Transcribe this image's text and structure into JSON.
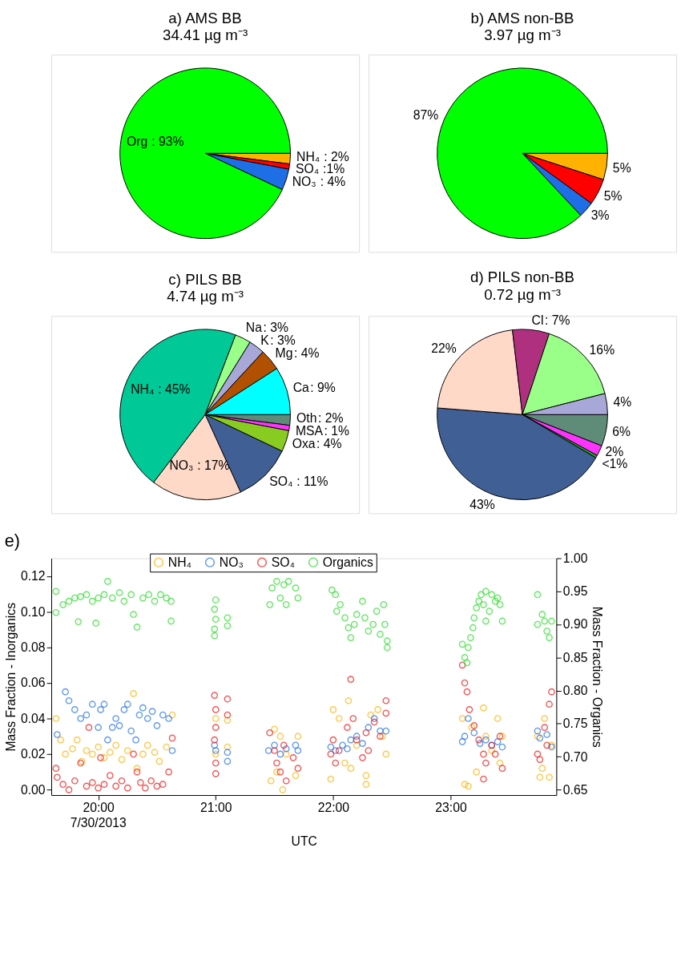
{
  "chart_data": [
    {
      "type": "pie",
      "title": "a) AMS BB",
      "subtitle": "34.41 µg m⁻³",
      "categories": [
        "NH₄",
        "SO₄",
        "NO₃",
        "Org"
      ],
      "values": [
        2,
        1,
        4,
        93
      ],
      "colors": [
        "#ffb300",
        "#ff0000",
        "#1e6fe6",
        "#00ff00"
      ],
      "value_labels": [
        ": 2%",
        ":1%",
        ": 4%",
        ": 93%"
      ]
    },
    {
      "type": "pie",
      "title": "b) AMS non-BB",
      "subtitle": "3.97 µg m⁻³",
      "categories": [
        null,
        null,
        null,
        null
      ],
      "values": [
        5,
        5,
        3,
        87
      ],
      "colors": [
        "#ffb300",
        "#ff0000",
        "#1e6fe6",
        "#00ff00"
      ],
      "value_labels": [
        "5%",
        "5%",
        "3%",
        "87%"
      ]
    },
    {
      "type": "pie",
      "title": "c) PILS BB",
      "subtitle": "4.74 µg m⁻³",
      "categories": [
        "Oth",
        "MSA",
        "Oxa",
        "SO₄",
        "NO₃",
        "NH₄",
        "Na",
        "K",
        "Mg",
        "Ca"
      ],
      "values": [
        2,
        1,
        4,
        11,
        17,
        45,
        3,
        3,
        4,
        9
      ],
      "colors": [
        "#5e8c78",
        "#ff33ff",
        "#88cc22",
        "#3f5f95",
        "#ffd9c8",
        "#00c896",
        "#99ff88",
        "#a8a8d8",
        "#b05000",
        "#00ffff"
      ],
      "value_labels": [
        ": 2%",
        ": 1%",
        ": 4%",
        ": 11%",
        ": 17%",
        ": 45%",
        ": 3%",
        ": 3%",
        ": 4%",
        ": 9%"
      ]
    },
    {
      "type": "pie",
      "title": "d) PILS non-BB",
      "subtitle": "0.72 µg m⁻³",
      "categories": [
        null,
        null,
        null,
        null,
        null,
        "Cl",
        null,
        null
      ],
      "values": [
        6,
        2,
        0.5,
        43,
        22,
        7,
        16,
        4
      ],
      "colors": [
        "#5e8c78",
        "#ff33ff",
        "#22aa22",
        "#3f5f95",
        "#ffd9c8",
        "#b03080",
        "#99ff88",
        "#a8a8d8"
      ],
      "value_labels": [
        "6%",
        "2%",
        "<1%",
        "43%",
        "22%",
        ": 7%",
        "16%",
        "4%"
      ]
    },
    {
      "type": "scatter",
      "title": "e)",
      "xlabel": "UTC",
      "ylabel": "Mass Fraction - Inorganics",
      "y2label": "Mass Fraction - Organics",
      "xlim": [
        19.6,
        23.9
      ],
      "xticks": [
        {
          "value": 20,
          "label": "20:00"
        },
        {
          "value": 21,
          "label": "21:00"
        },
        {
          "value": 22,
          "label": "22:00"
        },
        {
          "value": 23,
          "label": "23:00"
        }
      ],
      "ylim": [
        -0.003,
        0.13
      ],
      "yticks": [
        {
          "value": 0,
          "label": "0.00"
        },
        0.02,
        0.04,
        0.06,
        0.08,
        {
          "value": 0.1,
          "label": "0.10"
        },
        0.12
      ],
      "y2lim": [
        0.642,
        1.0
      ],
      "y2ticks": [
        0.65,
        {
          "value": 0.7,
          "label": "0.70"
        },
        0.75,
        {
          "value": 0.8,
          "label": "0.80"
        },
        0.85,
        {
          "value": 0.9,
          "label": "0.90"
        },
        0.95,
        {
          "value": 1,
          "label": "1.00"
        }
      ],
      "marker": "circle",
      "legend": "top",
      "grid": false,
      "annotations": [
        "7/30/2013"
      ],
      "series": [
        {
          "name": "NH₄",
          "color": "#ffb000",
          "x": [
            19.64,
            19.68,
            19.72,
            19.78,
            19.82,
            19.86,
            19.9,
            19.95,
            20.0,
            20.05,
            20.1,
            20.15,
            20.2,
            20.25,
            20.3,
            20.33,
            20.38,
            20.42,
            20.48,
            20.52,
            20.58,
            20.63,
            21.0,
            21.0,
            21.1,
            21.1,
            21.47,
            21.5,
            21.52,
            21.55,
            21.57,
            21.6,
            21.68,
            21.7,
            21.98,
            22.0,
            22.05,
            22.1,
            22.13,
            22.15,
            22.2,
            22.28,
            22.28,
            22.32,
            22.38,
            22.42,
            22.45,
            23.1,
            23.12,
            23.15,
            23.18,
            23.22,
            23.28,
            23.3,
            23.35,
            23.4,
            23.42,
            23.44,
            23.74,
            23.76,
            23.78,
            23.8,
            23.84,
            23.86
          ],
          "values": [
            0.04,
            0.028,
            0.02,
            0.023,
            0.028,
            0.016,
            0.022,
            0.02,
            0.024,
            0.018,
            0.021,
            0.025,
            0.017,
            0.022,
            0.054,
            0.012,
            0.02,
            0.025,
            0.021,
            0.016,
            0.024,
            0.042,
            0.04,
            0.02,
            0.039,
            0.024,
            0.005,
            0.034,
            0.01,
            0.03,
            0.0,
            0.02,
            0.008,
            0.03,
            0.006,
            0.045,
            0.04,
            0.015,
            0.05,
            0.012,
            0.025,
            0.008,
            0.003,
            0.042,
            0.045,
            0.03,
            0.02,
            0.04,
            0.003,
            0.002,
            0.035,
            0.01,
            0.046,
            0.03,
            0.022,
            0.04,
            0.015,
            0.03,
            0.03,
            0.007,
            0.012,
            0.04,
            0.007,
            0.025
          ]
        },
        {
          "name": "NO₃",
          "color": "#1e6fe6",
          "x": [
            19.65,
            19.72,
            19.75,
            19.8,
            19.85,
            19.9,
            19.95,
            20.0,
            20.02,
            20.05,
            20.08,
            20.12,
            20.15,
            20.18,
            20.22,
            20.25,
            20.28,
            20.32,
            20.35,
            20.38,
            20.42,
            20.46,
            20.5,
            20.55,
            20.6,
            20.63,
            20.99,
            21.0,
            21.1,
            21.1,
            21.45,
            21.5,
            21.55,
            21.6,
            21.68,
            21.7,
            21.98,
            22.02,
            22.08,
            22.12,
            22.15,
            22.2,
            22.25,
            22.3,
            22.35,
            22.4,
            22.45,
            23.1,
            23.12,
            23.15,
            23.2,
            23.25,
            23.3,
            23.35,
            23.4,
            23.44,
            23.74,
            23.76,
            23.82,
            23.86
          ],
          "values": [
            0.031,
            0.055,
            0.05,
            0.045,
            0.04,
            0.042,
            0.048,
            0.035,
            0.045,
            0.048,
            0.028,
            0.035,
            0.04,
            0.036,
            0.045,
            0.048,
            0.033,
            0.028,
            0.042,
            0.046,
            0.04,
            0.044,
            0.036,
            0.042,
            0.04,
            0.022,
            0.025,
            0.022,
            0.021,
            0.016,
            0.022,
            0.025,
            0.02,
            0.023,
            0.025,
            0.022,
            0.024,
            0.022,
            0.025,
            0.023,
            0.028,
            0.03,
            0.026,
            0.035,
            0.04,
            0.033,
            0.033,
            0.027,
            0.03,
            0.04,
            0.032,
            0.026,
            0.028,
            0.025,
            0.027,
            0.024,
            0.033,
            0.029,
            0.031,
            0.024
          ]
        },
        {
          "name": "SO₄",
          "color": "#ee1111",
          "x": [
            19.64,
            19.65,
            19.7,
            19.75,
            19.8,
            19.85,
            19.9,
            19.92,
            19.95,
            20.0,
            20.02,
            20.05,
            20.1,
            20.15,
            20.2,
            20.25,
            20.3,
            20.33,
            20.36,
            20.4,
            20.45,
            20.5,
            20.55,
            20.6,
            20.63,
            20.99,
            21.0,
            21.0,
            20.99,
            21.0,
            21.0,
            21.1,
            21.1,
            21.46,
            21.5,
            21.52,
            21.55,
            21.58,
            21.6,
            21.66,
            21.7,
            21.98,
            22.0,
            22.02,
            22.05,
            22.12,
            22.15,
            22.17,
            22.2,
            22.25,
            22.28,
            22.3,
            22.35,
            22.4,
            22.45,
            22.45,
            23.1,
            23.12,
            23.14,
            23.16,
            23.2,
            23.24,
            23.28,
            23.3,
            23.35,
            23.38,
            23.42,
            23.44,
            23.28,
            23.74,
            23.76,
            23.8,
            23.82,
            23.84,
            23.86
          ],
          "values": [
            0.012,
            0.007,
            0.003,
            0.0,
            0.005,
            0.015,
            0.002,
            0.035,
            0.004,
            0.001,
            0.018,
            0.003,
            0.008,
            0.002,
            0.005,
            0.001,
            0.02,
            0.01,
            0.004,
            0.001,
            0.005,
            0.002,
            0.003,
            0.01,
            0.029,
            0.053,
            0.045,
            0.035,
            0.028,
            0.015,
            0.009,
            0.051,
            0.042,
            0.032,
            0.022,
            0.015,
            0.01,
            0.025,
            0.005,
            0.018,
            0.012,
            0.02,
            0.028,
            0.015,
            0.022,
            0.035,
            0.062,
            0.04,
            0.028,
            0.018,
            0.032,
            0.022,
            0.038,
            0.03,
            0.05,
            0.043,
            0.07,
            0.06,
            0.055,
            0.045,
            0.036,
            0.028,
            0.02,
            0.015,
            0.025,
            0.02,
            0.03,
            0.012,
            0.006,
            0.02,
            0.017,
            0.035,
            0.025,
            0.048,
            0.055
          ]
        },
        {
          "name": "Organics",
          "color": "#22dd22",
          "axis": "y2",
          "x": [
            19.64,
            19.64,
            19.7,
            19.75,
            19.8,
            19.83,
            19.85,
            19.9,
            19.95,
            19.98,
            20.0,
            20.05,
            20.08,
            20.12,
            20.18,
            20.22,
            20.28,
            20.3,
            20.33,
            20.38,
            20.43,
            20.48,
            20.53,
            20.58,
            20.62,
            20.62,
            21.0,
            20.99,
            21.0,
            20.99,
            20.99,
            21.1,
            21.1,
            21.46,
            21.48,
            21.52,
            21.55,
            21.58,
            21.6,
            21.62,
            21.68,
            21.7,
            21.99,
            22.02,
            22.03,
            22.06,
            22.1,
            22.13,
            22.15,
            22.18,
            22.2,
            22.25,
            22.27,
            22.3,
            22.34,
            22.37,
            22.4,
            22.43,
            22.44,
            22.46,
            22.46,
            23.1,
            23.12,
            23.14,
            23.15,
            23.17,
            23.19,
            23.2,
            23.22,
            23.24,
            23.26,
            23.28,
            23.3,
            23.33,
            23.35,
            23.38,
            23.4,
            23.42,
            23.44,
            23.3,
            23.74,
            23.74,
            23.78,
            23.8,
            23.82,
            23.84,
            23.86
          ],
          "values": [
            0.95,
            0.918,
            0.93,
            0.935,
            0.94,
            0.904,
            0.942,
            0.945,
            0.935,
            0.902,
            0.94,
            0.945,
            0.965,
            0.94,
            0.948,
            0.935,
            0.945,
            0.915,
            0.896,
            0.94,
            0.945,
            0.935,
            0.945,
            0.94,
            0.935,
            0.905,
            0.937,
            0.923,
            0.908,
            0.893,
            0.883,
            0.91,
            0.898,
            0.93,
            0.955,
            0.965,
            0.94,
            0.96,
            0.93,
            0.965,
            0.955,
            0.94,
            0.952,
            0.945,
            0.92,
            0.93,
            0.91,
            0.895,
            0.88,
            0.9,
            0.915,
            0.935,
            0.91,
            0.89,
            0.9,
            0.92,
            0.885,
            0.93,
            0.9,
            0.875,
            0.865,
            0.87,
            0.85,
            0.842,
            0.865,
            0.88,
            0.895,
            0.91,
            0.925,
            0.935,
            0.945,
            0.93,
            0.95,
            0.92,
            0.945,
            0.935,
            0.94,
            0.93,
            0.905,
            0.905,
            0.945,
            0.9,
            0.915,
            0.905,
            0.89,
            0.88,
            0.905
          ]
        }
      ]
    }
  ]
}
